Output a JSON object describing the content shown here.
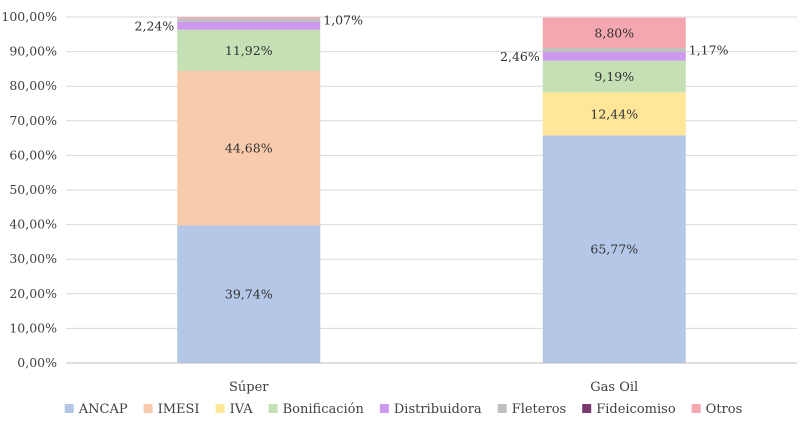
{
  "chart_data": {
    "type": "bar",
    "stacked": true,
    "categories": [
      "Súper",
      "Gas Oil"
    ],
    "ylim": [
      0,
      100
    ],
    "yticks": [
      "0,00%",
      "10,00%",
      "20,00%",
      "30,00%",
      "40,00%",
      "50,00%",
      "60,00%",
      "70,00%",
      "80,00%",
      "90,00%",
      "100,00%"
    ],
    "grid": true,
    "legend": "bottom",
    "series": [
      {
        "name": "ANCAP",
        "color": "#b4c7e7",
        "values": [
          39.74,
          65.77
        ],
        "labels": [
          "39,74%",
          "65,77%"
        ]
      },
      {
        "name": "IMESI",
        "color": "#f8cbad",
        "values": [
          44.68,
          0
        ],
        "labels": [
          "44,68%",
          ""
        ]
      },
      {
        "name": "IVA",
        "color": "#ffe699",
        "values": [
          0,
          12.44
        ],
        "labels": [
          "",
          "12,44%"
        ]
      },
      {
        "name": "Bonificación",
        "color": "#c5e0b4",
        "values": [
          11.92,
          9.19
        ],
        "labels": [
          "11,92%",
          "9,19%"
        ]
      },
      {
        "name": "Distribuidora",
        "color": "#cc99ee",
        "values": [
          2.24,
          2.46
        ],
        "labels": [
          "2,24%",
          "2,46%"
        ]
      },
      {
        "name": "Fleteros",
        "color": "#bfbfbf",
        "values": [
          1.07,
          1.17
        ],
        "labels": [
          "1,07%",
          "1,17%"
        ]
      },
      {
        "name": "Fideicomiso",
        "color": "#7b3a6e",
        "values": [
          0,
          0
        ],
        "labels": [
          "",
          ""
        ]
      },
      {
        "name": "Otros",
        "color": "#f4a7b0",
        "values": [
          0.35,
          8.8
        ],
        "labels": [
          "",
          "8,80%"
        ]
      }
    ]
  }
}
